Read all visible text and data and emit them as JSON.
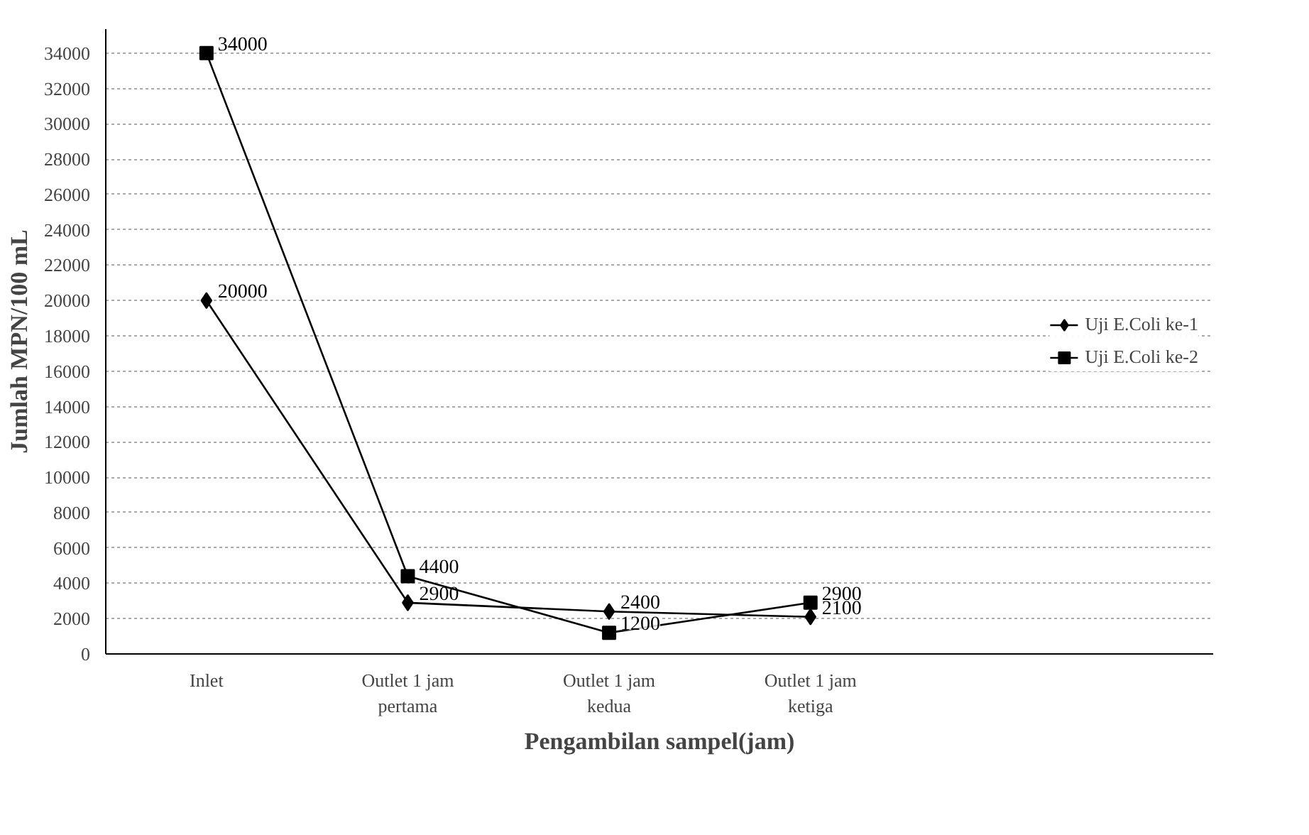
{
  "chart_data": {
    "type": "line",
    "xlabel": "Pengambilan sampel(jam)",
    "ylabel": "Jumlah MPN/100 mL",
    "categories": [
      "Inlet",
      "Outlet 1 jam\npertama",
      "Outlet 1 jam\nkedua",
      "Outlet 1 jam\nketiga"
    ],
    "series": [
      {
        "name": "Uji E.Coli ke-1",
        "color": "#000000",
        "marker": "diamond",
        "values": [
          20000,
          2900,
          2400,
          2100
        ]
      },
      {
        "name": "Uji E.Coli ke-2",
        "color": "#000000",
        "marker": "square",
        "values": [
          34000,
          4400,
          1200,
          2900
        ]
      }
    ],
    "ylim": [
      0,
      34000
    ],
    "yticks": [
      0,
      2000,
      4000,
      6000,
      8000,
      10000,
      12000,
      14000,
      16000,
      18000,
      20000,
      22000,
      24000,
      26000,
      28000,
      30000,
      32000,
      34000
    ],
    "grid": "y",
    "legend": "right",
    "data_labels": true,
    "line_style": "solid"
  }
}
